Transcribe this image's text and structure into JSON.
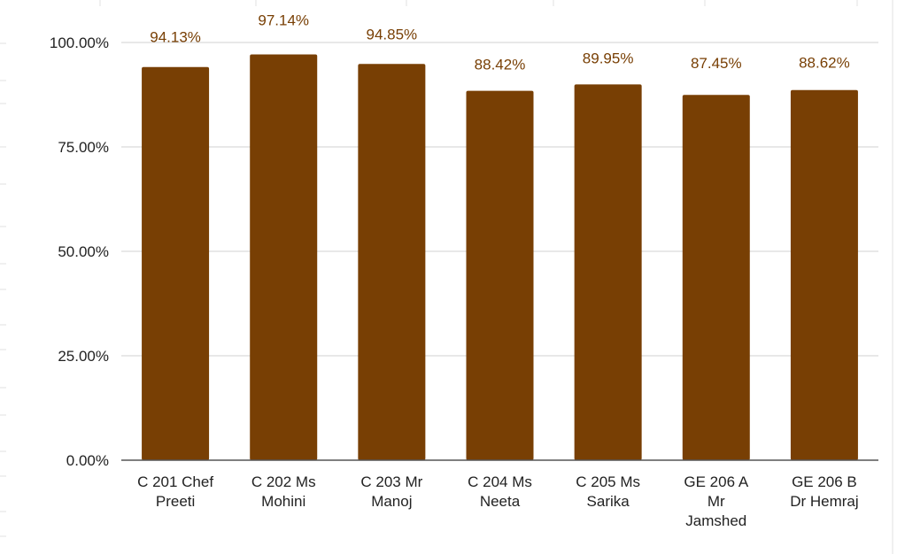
{
  "chart_data": {
    "type": "bar",
    "categories": [
      "C 201 Chef Preeti",
      "C 202 Ms Mohini",
      "C 203 Mr Manoj",
      "C 204 Ms Neeta",
      "C 205 Ms Sarika",
      "GE 206 A Mr Jamshed",
      "GE 206 B Dr Hemraj"
    ],
    "category_label_lines": [
      [
        "C 201 Chef",
        "Preeti"
      ],
      [
        "C 202 Ms",
        "Mohini"
      ],
      [
        "C 203 Mr",
        "Manoj"
      ],
      [
        "C 204 Ms",
        "Neeta"
      ],
      [
        "C 205 Ms",
        "Sarika"
      ],
      [
        "GE 206 A",
        "Mr",
        "Jamshed"
      ],
      [
        "GE 206 B",
        "Dr Hemraj"
      ]
    ],
    "values": [
      94.13,
      97.14,
      94.85,
      88.42,
      89.95,
      87.45,
      88.62
    ],
    "data_labels": [
      "94.13%",
      "97.14%",
      "94.85%",
      "88.42%",
      "89.95%",
      "87.45%",
      "88.62%"
    ],
    "ylim": [
      0,
      100
    ],
    "yticks": [
      0,
      25,
      50,
      75,
      100
    ],
    "ytick_labels": [
      "0.00%",
      "25.00%",
      "50.00%",
      "75.00%",
      "100.00%"
    ],
    "title": "",
    "xlabel": "",
    "ylabel": "",
    "grid": true,
    "legend": "none",
    "colors": {
      "bar": "#783f04",
      "data_label": "#783f04",
      "gridline": "#d0d0d0",
      "axis": "#555555",
      "tick_text": "#222222",
      "sheet_grid": "#e0e0e0"
    }
  }
}
